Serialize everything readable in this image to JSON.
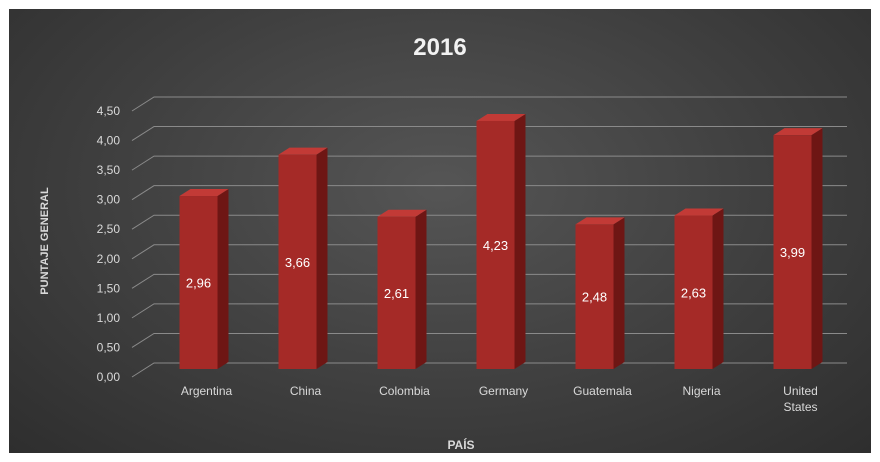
{
  "chart_data": {
    "type": "bar",
    "title": "2016",
    "xlabel": "PAÍS",
    "ylabel": "PUNTAJE GENERAL",
    "categories": [
      "Argentina",
      "China",
      "Colombia",
      "Germany",
      "Guatemala",
      "Nigeria",
      "United States"
    ],
    "category_lines": [
      [
        "Argentina"
      ],
      [
        "China"
      ],
      [
        "Colombia"
      ],
      [
        "Germany"
      ],
      [
        "Guatemala"
      ],
      [
        "Nigeria"
      ],
      [
        "United",
        "States"
      ]
    ],
    "values": [
      2.96,
      3.66,
      2.61,
      4.23,
      2.48,
      2.63,
      3.99
    ],
    "value_labels": [
      "2,96",
      "3,66",
      "2,61",
      "4,23",
      "2,48",
      "2,63",
      "3,99"
    ],
    "yticks": [
      0,
      0.5,
      1,
      1.5,
      2,
      2.5,
      3,
      3.5,
      4,
      4.5
    ],
    "ytick_labels": [
      "0,00",
      "0,50",
      "1,00",
      "1,50",
      "2,00",
      "2,50",
      "3,00",
      "3,50",
      "4,00",
      "4,50"
    ],
    "ylim": [
      0,
      4.5
    ],
    "grid": true,
    "legend": "none",
    "style": "3d-column",
    "colors": {
      "bar_front": "#a52a27",
      "bar_side": "#6e1614",
      "bar_top": "#c23a36",
      "gridline": "#8a8a8a",
      "text": "#d9d9d9",
      "title": "#f2f2f2",
      "background": "#404040"
    }
  }
}
